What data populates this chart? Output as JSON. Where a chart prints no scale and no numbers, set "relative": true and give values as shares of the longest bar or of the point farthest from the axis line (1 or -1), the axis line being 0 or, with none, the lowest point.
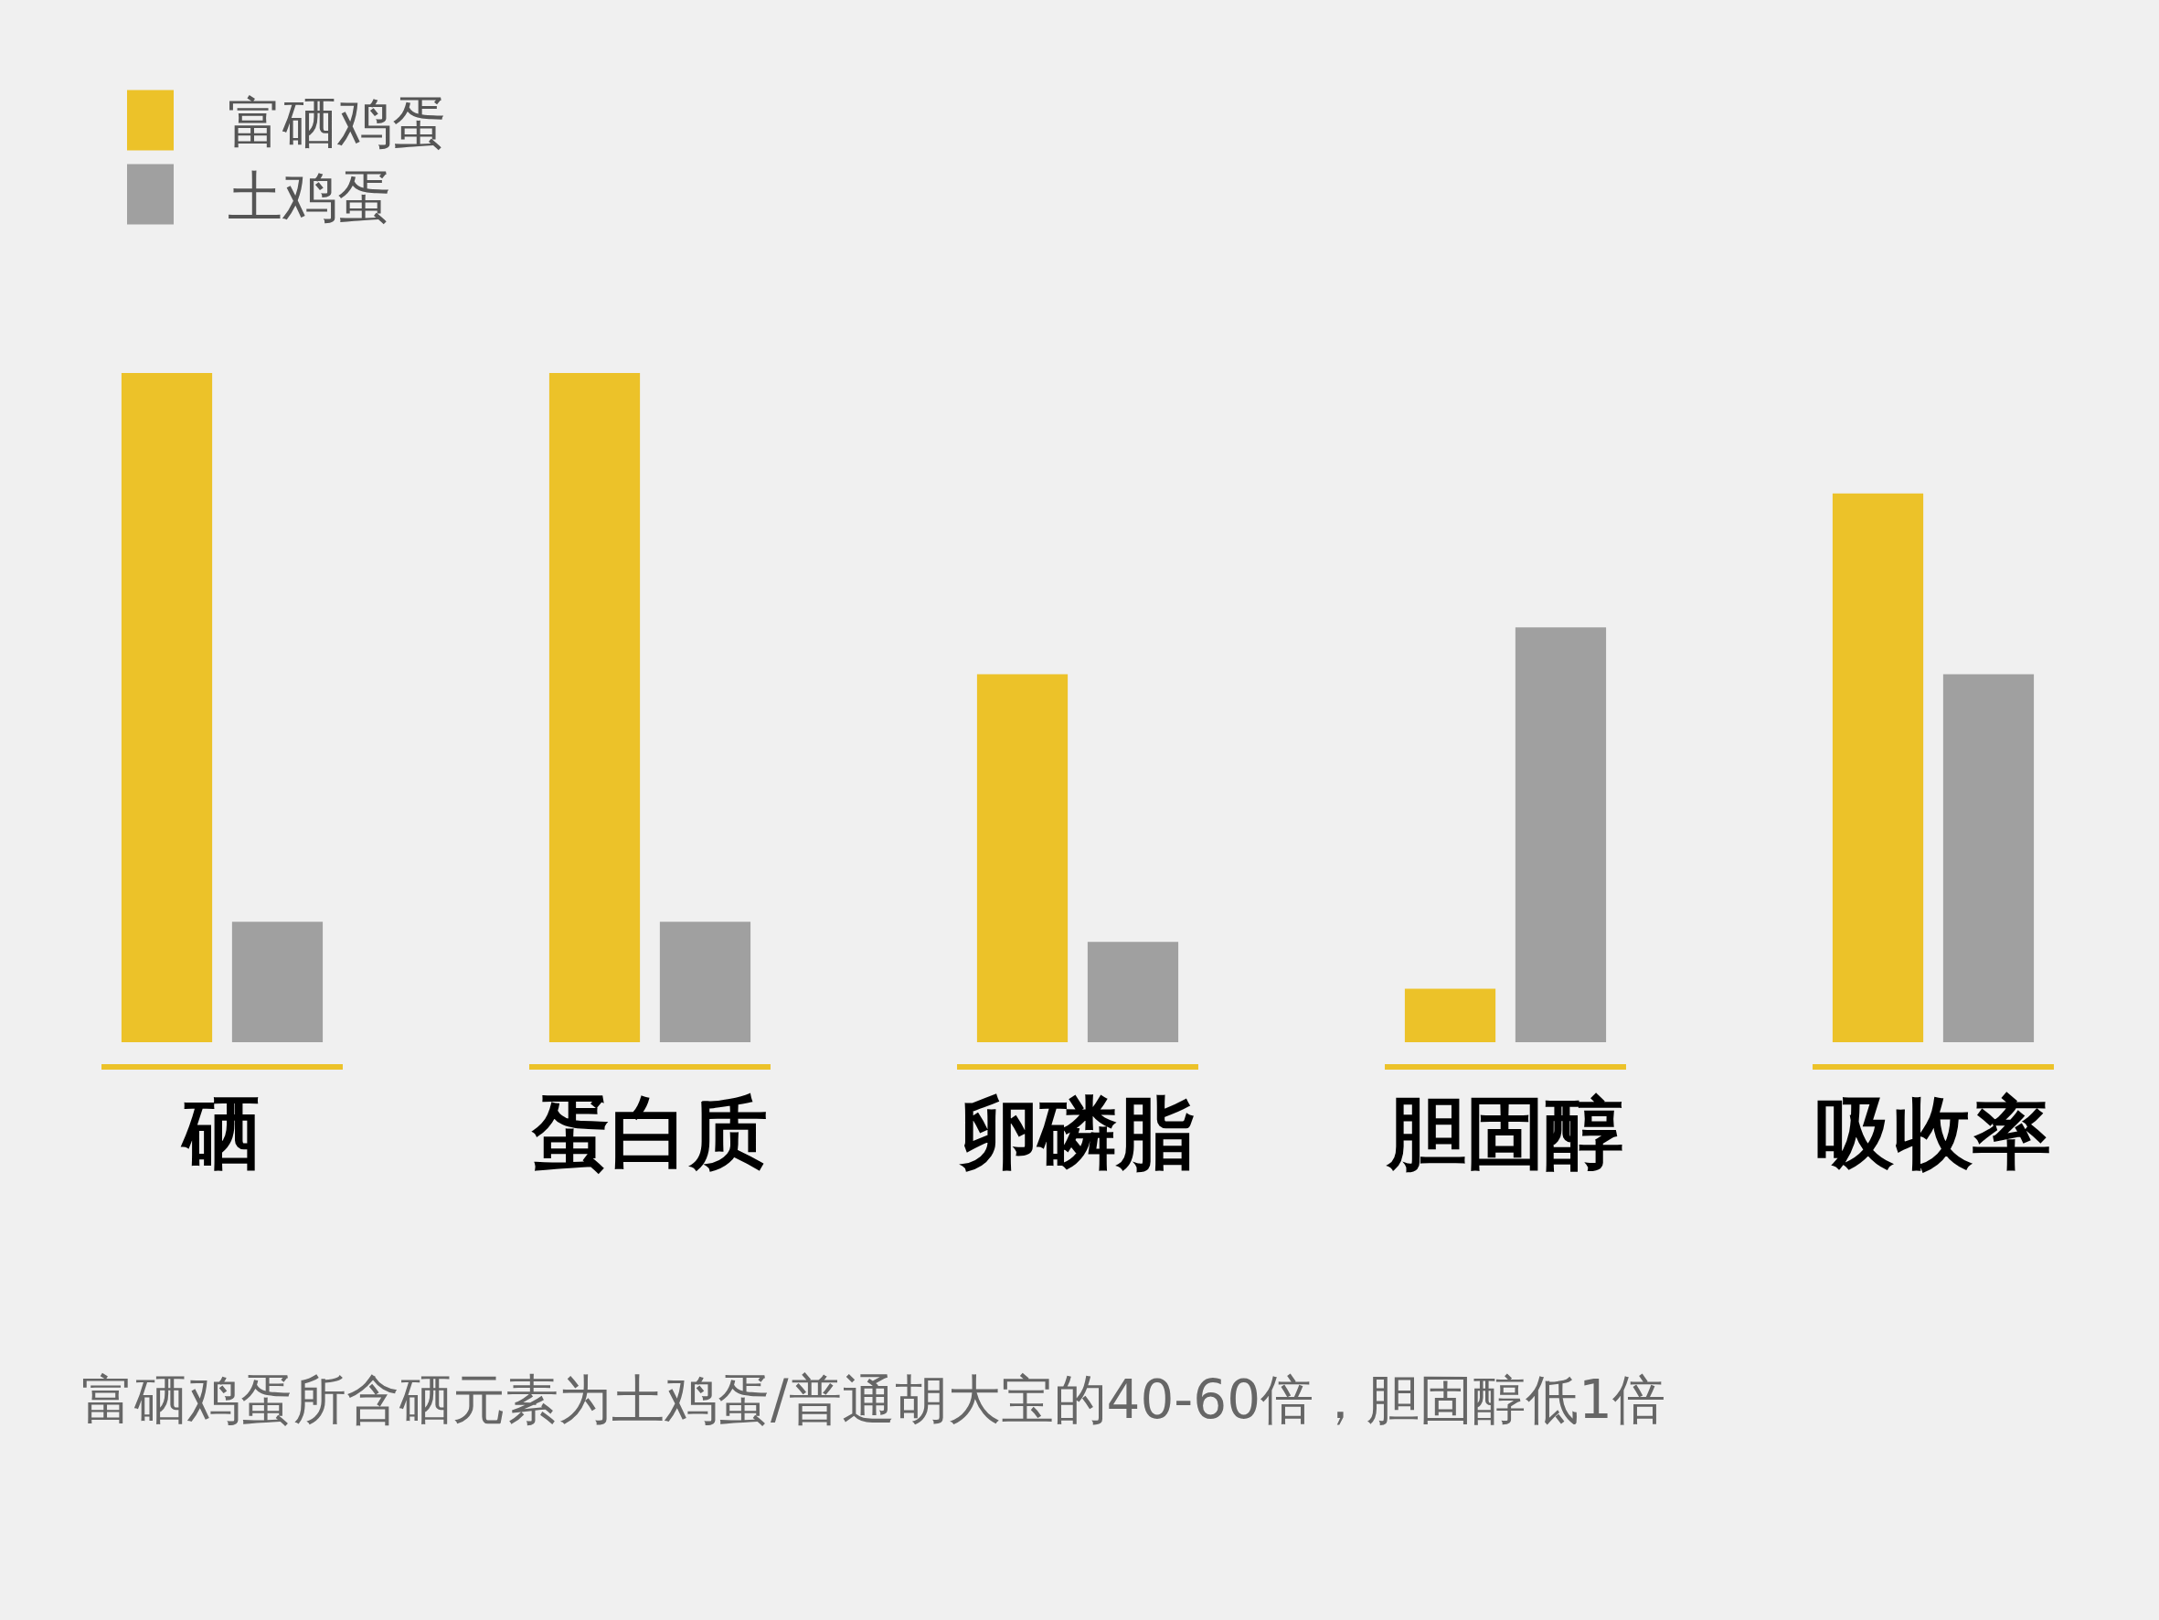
{
  "chart_data": {
    "type": "bar",
    "relative": true,
    "categories": [
      "硒",
      "蛋白质",
      "卵磷脂",
      "胆固醇",
      "吸收率"
    ],
    "series": [
      {
        "name": "富硒鸡蛋",
        "color": "#ecc229",
        "values": [
          1,
          1,
          0.55,
          0.08,
          0.82
        ]
      },
      {
        "name": "土鸡蛋",
        "color": "#a0a0a0",
        "values": [
          0.18,
          0.18,
          0.15,
          0.62,
          0.55
        ]
      }
    ],
    "legend": "top left",
    "grid": false,
    "annotations": [
      "富硒鸡蛋所含硒元素为土鸡蛋/普通胡大宝的40-60倍，胆固醇低1倍"
    ]
  }
}
